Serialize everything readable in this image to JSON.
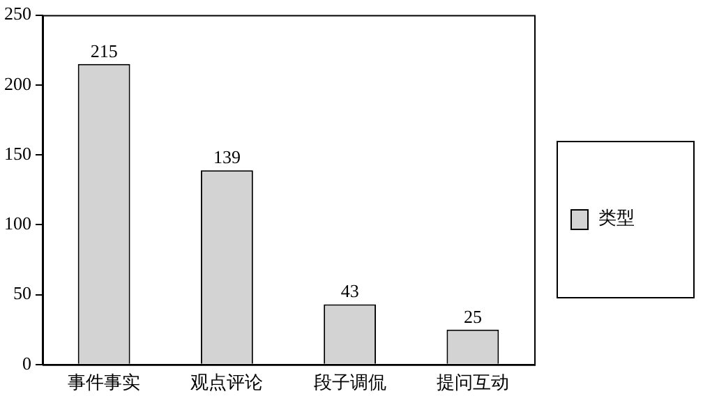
{
  "chart_data": {
    "type": "bar",
    "categories": [
      "事件事实",
      "观点评论",
      "段子调侃",
      "提问互动"
    ],
    "series": [
      {
        "name": "类型",
        "color": "#d3d3d3",
        "values": [
          215,
          139,
          43,
          25
        ]
      }
    ],
    "ylim": [
      0,
      250
    ],
    "yticks": [
      0,
      50,
      100,
      150,
      200,
      250
    ],
    "grid": false,
    "legend": "right",
    "data_labels": true
  }
}
